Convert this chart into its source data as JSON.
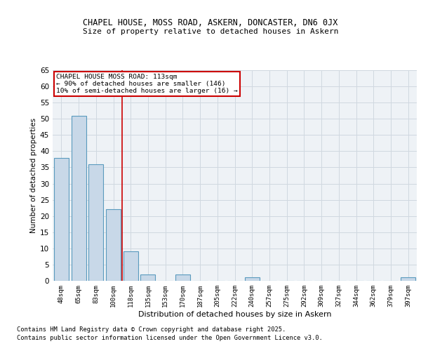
{
  "title1": "CHAPEL HOUSE, MOSS ROAD, ASKERN, DONCASTER, DN6 0JX",
  "title2": "Size of property relative to detached houses in Askern",
  "xlabel": "Distribution of detached houses by size in Askern",
  "ylabel": "Number of detached properties",
  "categories": [
    "48sqm",
    "65sqm",
    "83sqm",
    "100sqm",
    "118sqm",
    "135sqm",
    "153sqm",
    "170sqm",
    "187sqm",
    "205sqm",
    "222sqm",
    "240sqm",
    "257sqm",
    "275sqm",
    "292sqm",
    "309sqm",
    "327sqm",
    "344sqm",
    "362sqm",
    "379sqm",
    "397sqm"
  ],
  "values": [
    38,
    51,
    36,
    22,
    9,
    2,
    0,
    2,
    0,
    0,
    0,
    1,
    0,
    0,
    0,
    0,
    0,
    0,
    0,
    0,
    1
  ],
  "bar_color": "#c8d8e8",
  "bar_edge_color": "#5a9abe",
  "grid_color": "#d0d8e0",
  "bg_color": "#eef2f6",
  "vline_x_idx": 3.5,
  "vline_color": "#cc0000",
  "annotation_lines": [
    "CHAPEL HOUSE MOSS ROAD: 113sqm",
    "← 90% of detached houses are smaller (146)",
    "10% of semi-detached houses are larger (16) →"
  ],
  "annotation_box_color": "#cc0000",
  "ylim": [
    0,
    65
  ],
  "yticks": [
    0,
    5,
    10,
    15,
    20,
    25,
    30,
    35,
    40,
    45,
    50,
    55,
    60,
    65
  ],
  "footer1": "Contains HM Land Registry data © Crown copyright and database right 2025.",
  "footer2": "Contains public sector information licensed under the Open Government Licence v3.0."
}
